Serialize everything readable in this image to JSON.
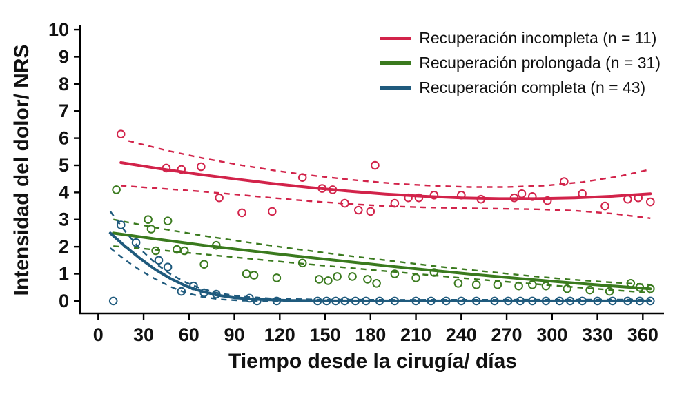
{
  "chart_data": {
    "type": "scatter",
    "title": "",
    "xlabel": "Tiempo desde la cirugía/ días",
    "ylabel": "Intensidad del dolor/ NRS",
    "xlim": [
      0,
      360
    ],
    "ylim": [
      0,
      10
    ],
    "x_ticks": [
      0,
      30,
      60,
      90,
      120,
      150,
      180,
      210,
      240,
      270,
      300,
      330,
      360
    ],
    "y_ticks": [
      0,
      1,
      2,
      3,
      4,
      5,
      6,
      7,
      8,
      9,
      10
    ],
    "grid": false,
    "legend_position": "top-right",
    "series": [
      {
        "name": "Recuperación incompleta (n = 11)",
        "color": "#d2234a",
        "marker": "open-circle",
        "points": [
          [
            15,
            6.15
          ],
          [
            45,
            4.9
          ],
          [
            55,
            4.85
          ],
          [
            68,
            4.95
          ],
          [
            80,
            3.8
          ],
          [
            95,
            3.25
          ],
          [
            115,
            3.3
          ],
          [
            135,
            4.55
          ],
          [
            148,
            4.15
          ],
          [
            155,
            4.1
          ],
          [
            163,
            3.6
          ],
          [
            172,
            3.35
          ],
          [
            180,
            3.3
          ],
          [
            183,
            5.0
          ],
          [
            196,
            3.6
          ],
          [
            205,
            3.8
          ],
          [
            212,
            3.8
          ],
          [
            222,
            3.9
          ],
          [
            240,
            3.9
          ],
          [
            253,
            3.75
          ],
          [
            275,
            3.8
          ],
          [
            280,
            3.95
          ],
          [
            287,
            3.85
          ],
          [
            297,
            3.7
          ],
          [
            308,
            4.4
          ],
          [
            320,
            3.95
          ],
          [
            335,
            3.5
          ],
          [
            350,
            3.75
          ],
          [
            357,
            3.8
          ],
          [
            365,
            3.65
          ]
        ],
        "fit": [
          [
            15,
            5.1
          ],
          [
            40,
            4.88
          ],
          [
            65,
            4.68
          ],
          [
            90,
            4.5
          ],
          [
            115,
            4.33
          ],
          [
            140,
            4.18
          ],
          [
            165,
            4.05
          ],
          [
            190,
            3.94
          ],
          [
            215,
            3.86
          ],
          [
            240,
            3.8
          ],
          [
            265,
            3.77
          ],
          [
            290,
            3.77
          ],
          [
            315,
            3.8
          ],
          [
            340,
            3.86
          ],
          [
            365,
            3.95
          ]
        ],
        "ci_upper": [
          [
            20,
            5.9
          ],
          [
            45,
            5.55
          ],
          [
            70,
            5.25
          ],
          [
            95,
            5.0
          ],
          [
            120,
            4.78
          ],
          [
            145,
            4.6
          ],
          [
            170,
            4.45
          ],
          [
            195,
            4.33
          ],
          [
            220,
            4.25
          ],
          [
            245,
            4.2
          ],
          [
            270,
            4.2
          ],
          [
            295,
            4.25
          ],
          [
            320,
            4.38
          ],
          [
            345,
            4.6
          ],
          [
            365,
            4.85
          ]
        ],
        "ci_lower": [
          [
            15,
            4.25
          ],
          [
            40,
            4.15
          ],
          [
            65,
            4.05
          ],
          [
            90,
            3.93
          ],
          [
            115,
            3.8
          ],
          [
            140,
            3.68
          ],
          [
            165,
            3.58
          ],
          [
            190,
            3.5
          ],
          [
            215,
            3.45
          ],
          [
            240,
            3.42
          ],
          [
            265,
            3.4
          ],
          [
            290,
            3.38
          ],
          [
            315,
            3.33
          ],
          [
            340,
            3.22
          ],
          [
            365,
            3.05
          ]
        ]
      },
      {
        "name": "Recuperación prolongada (n = 31)",
        "color": "#3a7a1e",
        "marker": "open-circle",
        "points": [
          [
            12,
            4.1
          ],
          [
            33,
            3.0
          ],
          [
            35,
            2.65
          ],
          [
            38,
            1.85
          ],
          [
            46,
            2.95
          ],
          [
            52,
            1.9
          ],
          [
            57,
            1.85
          ],
          [
            70,
            1.35
          ],
          [
            78,
            2.05
          ],
          [
            98,
            1.0
          ],
          [
            103,
            0.95
          ],
          [
            118,
            0.85
          ],
          [
            135,
            1.4
          ],
          [
            146,
            0.8
          ],
          [
            152,
            0.75
          ],
          [
            158,
            0.9
          ],
          [
            168,
            0.9
          ],
          [
            178,
            0.8
          ],
          [
            184,
            0.65
          ],
          [
            196,
            1.0
          ],
          [
            210,
            0.85
          ],
          [
            222,
            1.05
          ],
          [
            238,
            0.65
          ],
          [
            250,
            0.6
          ],
          [
            264,
            0.6
          ],
          [
            278,
            0.55
          ],
          [
            287,
            0.6
          ],
          [
            296,
            0.55
          ],
          [
            310,
            0.45
          ],
          [
            325,
            0.4
          ],
          [
            338,
            0.35
          ],
          [
            352,
            0.65
          ],
          [
            358,
            0.5
          ],
          [
            365,
            0.45
          ]
        ],
        "fit": [
          [
            10,
            2.5
          ],
          [
            40,
            2.27
          ],
          [
            70,
            2.05
          ],
          [
            100,
            1.85
          ],
          [
            130,
            1.66
          ],
          [
            160,
            1.48
          ],
          [
            190,
            1.3
          ],
          [
            220,
            1.13
          ],
          [
            250,
            0.97
          ],
          [
            280,
            0.82
          ],
          [
            310,
            0.68
          ],
          [
            340,
            0.55
          ],
          [
            365,
            0.45
          ]
        ],
        "ci_upper": [
          [
            10,
            3.0
          ],
          [
            40,
            2.68
          ],
          [
            70,
            2.4
          ],
          [
            100,
            2.15
          ],
          [
            130,
            1.92
          ],
          [
            160,
            1.7
          ],
          [
            190,
            1.5
          ],
          [
            220,
            1.3
          ],
          [
            250,
            1.12
          ],
          [
            280,
            0.95
          ],
          [
            310,
            0.8
          ],
          [
            340,
            0.68
          ],
          [
            365,
            0.6
          ]
        ],
        "ci_lower": [
          [
            10,
            2.02
          ],
          [
            40,
            1.88
          ],
          [
            70,
            1.72
          ],
          [
            100,
            1.56
          ],
          [
            130,
            1.4
          ],
          [
            160,
            1.25
          ],
          [
            190,
            1.1
          ],
          [
            220,
            0.95
          ],
          [
            250,
            0.8
          ],
          [
            280,
            0.66
          ],
          [
            310,
            0.53
          ],
          [
            340,
            0.4
          ],
          [
            365,
            0.3
          ]
        ]
      },
      {
        "name": "Recuperación completa (n = 43)",
        "color": "#1f5a7d",
        "marker": "open-circle",
        "points": [
          [
            10,
            0
          ],
          [
            15,
            2.8
          ],
          [
            25,
            2.15
          ],
          [
            40,
            1.5
          ],
          [
            46,
            1.25
          ],
          [
            55,
            0.35
          ],
          [
            63,
            0.55
          ],
          [
            70,
            0.3
          ],
          [
            78,
            0.25
          ],
          [
            100,
            0.1
          ],
          [
            105,
            0
          ],
          [
            118,
            0
          ],
          [
            145,
            0
          ],
          [
            151,
            0
          ],
          [
            157,
            0
          ],
          [
            163,
            0
          ],
          [
            170,
            0
          ],
          [
            177,
            0
          ],
          [
            186,
            0
          ],
          [
            196,
            0
          ],
          [
            210,
            0
          ],
          [
            220,
            0
          ],
          [
            230,
            0
          ],
          [
            240,
            0
          ],
          [
            250,
            0
          ],
          [
            262,
            0
          ],
          [
            271,
            0
          ],
          [
            279,
            0
          ],
          [
            287,
            0
          ],
          [
            296,
            0
          ],
          [
            305,
            0
          ],
          [
            312,
            0
          ],
          [
            320,
            0
          ],
          [
            330,
            0
          ],
          [
            340,
            0
          ],
          [
            350,
            0
          ],
          [
            358,
            0
          ],
          [
            365,
            0
          ]
        ],
        "fit": [
          [
            8,
            2.5
          ],
          [
            18,
            2.0
          ],
          [
            28,
            1.55
          ],
          [
            38,
            1.15
          ],
          [
            48,
            0.82
          ],
          [
            58,
            0.55
          ],
          [
            68,
            0.36
          ],
          [
            78,
            0.22
          ],
          [
            90,
            0.12
          ],
          [
            105,
            0.06
          ],
          [
            125,
            0.02
          ],
          [
            160,
            0.0
          ],
          [
            250,
            0.0
          ],
          [
            365,
            0.0
          ]
        ],
        "ci_upper": [
          [
            8,
            3.3
          ],
          [
            18,
            2.55
          ],
          [
            28,
            1.9
          ],
          [
            38,
            1.38
          ],
          [
            48,
            0.98
          ],
          [
            58,
            0.68
          ],
          [
            68,
            0.46
          ],
          [
            80,
            0.28
          ],
          [
            95,
            0.16
          ],
          [
            115,
            0.09
          ],
          [
            145,
            0.05
          ],
          [
            200,
            0.04
          ],
          [
            365,
            0.05
          ]
        ],
        "ci_lower": [
          [
            8,
            1.95
          ],
          [
            18,
            1.5
          ],
          [
            28,
            1.12
          ],
          [
            38,
            0.8
          ],
          [
            48,
            0.52
          ],
          [
            58,
            0.3
          ],
          [
            68,
            0.16
          ],
          [
            80,
            0.06
          ],
          [
            95,
            0.01
          ],
          [
            110,
            0.0
          ],
          [
            250,
            0.0
          ],
          [
            365,
            0.0
          ]
        ]
      }
    ]
  }
}
